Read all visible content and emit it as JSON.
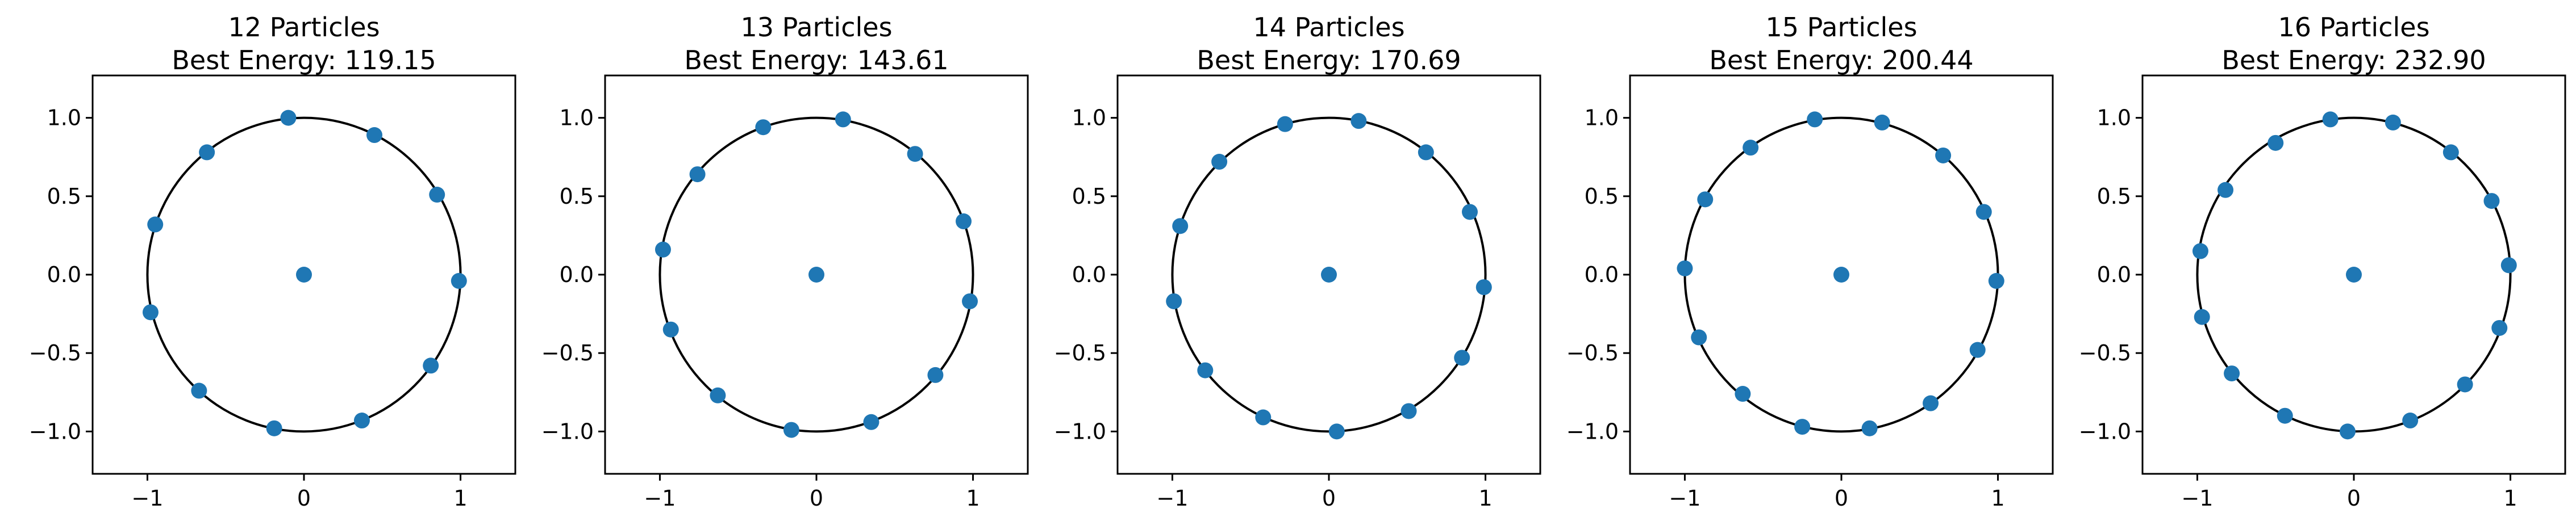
{
  "chart_data": [
    {
      "type": "scatter",
      "title": [
        "12 Particles",
        "Best Energy: 119.15"
      ],
      "xlabel": "",
      "ylabel": "",
      "xlim": [
        -1.35,
        1.35
      ],
      "ylim": [
        -1.27,
        1.27
      ],
      "xticks": [
        -1,
        0,
        1
      ],
      "xticklabels": [
        "−1",
        "0",
        "1"
      ],
      "yticks": [
        1.0,
        0.5,
        0.0,
        -0.5,
        -1.0
      ],
      "yticklabels": [
        "1.0",
        "0.5",
        "0.0",
        "−0.5",
        "−1.0"
      ],
      "unit_circle": true,
      "color": "#1f77b4",
      "points": [
        [
          0,
          0
        ],
        [
          -0.1,
          1.0
        ],
        [
          0.45,
          0.89
        ],
        [
          0.85,
          0.51
        ],
        [
          0.99,
          -0.04
        ],
        [
          0.81,
          -0.58
        ],
        [
          0.37,
          -0.93
        ],
        [
          -0.19,
          -0.98
        ],
        [
          -0.67,
          -0.74
        ],
        [
          -0.98,
          -0.24
        ],
        [
          -0.95,
          0.32
        ],
        [
          -0.62,
          0.78
        ]
      ]
    },
    {
      "type": "scatter",
      "title": [
        "13 Particles",
        "Best Energy: 143.61"
      ],
      "xlabel": "",
      "ylabel": "",
      "xlim": [
        -1.35,
        1.35
      ],
      "ylim": [
        -1.27,
        1.27
      ],
      "xticks": [
        -1,
        0,
        1
      ],
      "xticklabels": [
        "−1",
        "0",
        "1"
      ],
      "yticks": [
        1.0,
        0.5,
        0.0,
        -0.5,
        -1.0
      ],
      "yticklabels": [
        "1.0",
        "0.5",
        "0.0",
        "−0.5",
        "−1.0"
      ],
      "unit_circle": true,
      "color": "#1f77b4",
      "points": [
        [
          0,
          0
        ],
        [
          0.17,
          0.99
        ],
        [
          0.63,
          0.77
        ],
        [
          0.94,
          0.34
        ],
        [
          0.98,
          -0.17
        ],
        [
          0.76,
          -0.64
        ],
        [
          0.35,
          -0.94
        ],
        [
          -0.16,
          -0.99
        ],
        [
          -0.63,
          -0.77
        ],
        [
          -0.93,
          -0.35
        ],
        [
          -0.98,
          0.16
        ],
        [
          -0.76,
          0.64
        ],
        [
          -0.34,
          0.94
        ]
      ]
    },
    {
      "type": "scatter",
      "title": [
        "14 Particles",
        "Best Energy: 170.69"
      ],
      "xlabel": "",
      "ylabel": "",
      "xlim": [
        -1.35,
        1.35
      ],
      "ylim": [
        -1.27,
        1.27
      ],
      "xticks": [
        -1,
        0,
        1
      ],
      "xticklabels": [
        "−1",
        "0",
        "1"
      ],
      "yticks": [
        1.0,
        0.5,
        0.0,
        -0.5,
        -1.0
      ],
      "yticklabels": [
        "1.0",
        "0.5",
        "0.0",
        "−0.5",
        "−1.0"
      ],
      "unit_circle": true,
      "color": "#1f77b4",
      "points": [
        [
          0,
          0
        ],
        [
          0.19,
          0.98
        ],
        [
          0.62,
          0.78
        ],
        [
          0.9,
          0.4
        ],
        [
          0.99,
          -0.08
        ],
        [
          0.85,
          -0.53
        ],
        [
          0.51,
          -0.87
        ],
        [
          0.05,
          -1.0
        ],
        [
          -0.42,
          -0.91
        ],
        [
          -0.79,
          -0.61
        ],
        [
          -0.99,
          -0.17
        ],
        [
          -0.95,
          0.31
        ],
        [
          -0.7,
          0.72
        ],
        [
          -0.28,
          0.96
        ]
      ]
    },
    {
      "type": "scatter",
      "title": [
        "15 Particles",
        "Best Energy: 200.44"
      ],
      "xlabel": "",
      "ylabel": "",
      "xlim": [
        -1.35,
        1.35
      ],
      "ylim": [
        -1.27,
        1.27
      ],
      "xticks": [
        -1,
        0,
        1
      ],
      "xticklabels": [
        "−1",
        "0",
        "1"
      ],
      "yticks": [
        1.0,
        0.5,
        0.0,
        -0.5,
        -1.0
      ],
      "yticklabels": [
        "1.0",
        "0.5",
        "0.0",
        "−0.5",
        "−1.0"
      ],
      "unit_circle": true,
      "color": "#1f77b4",
      "points": [
        [
          0,
          0
        ],
        [
          0.26,
          0.97
        ],
        [
          0.65,
          0.76
        ],
        [
          0.91,
          0.4
        ],
        [
          0.99,
          -0.04
        ],
        [
          0.87,
          -0.48
        ],
        [
          0.57,
          -0.82
        ],
        [
          0.18,
          -0.98
        ],
        [
          -0.25,
          -0.97
        ],
        [
          -0.63,
          -0.76
        ],
        [
          -0.91,
          -0.4
        ],
        [
          -1.0,
          0.04
        ],
        [
          -0.87,
          0.48
        ],
        [
          -0.58,
          0.81
        ],
        [
          -0.17,
          0.99
        ]
      ]
    },
    {
      "type": "scatter",
      "title": [
        "16 Particles",
        "Best Energy: 232.90"
      ],
      "xlabel": "",
      "ylabel": "",
      "xlim": [
        -1.35,
        1.35
      ],
      "ylim": [
        -1.27,
        1.27
      ],
      "xticks": [
        -1,
        0,
        1
      ],
      "xticklabels": [
        "−1",
        "0",
        "1"
      ],
      "yticks": [
        1.0,
        0.5,
        0.0,
        -0.5,
        -1.0
      ],
      "yticklabels": [
        "1.0",
        "0.5",
        "0.0",
        "−0.5",
        "−1.0"
      ],
      "unit_circle": true,
      "color": "#1f77b4",
      "points": [
        [
          0,
          0
        ],
        [
          0.25,
          0.97
        ],
        [
          0.62,
          0.78
        ],
        [
          0.88,
          0.47
        ],
        [
          0.99,
          0.06
        ],
        [
          0.93,
          -0.34
        ],
        [
          0.71,
          -0.7
        ],
        [
          0.36,
          -0.93
        ],
        [
          -0.04,
          -1.0
        ],
        [
          -0.44,
          -0.9
        ],
        [
          -0.78,
          -0.63
        ],
        [
          -0.97,
          -0.27
        ],
        [
          -0.98,
          0.15
        ],
        [
          -0.82,
          0.54
        ],
        [
          -0.5,
          0.84
        ],
        [
          -0.15,
          0.99
        ]
      ]
    }
  ]
}
